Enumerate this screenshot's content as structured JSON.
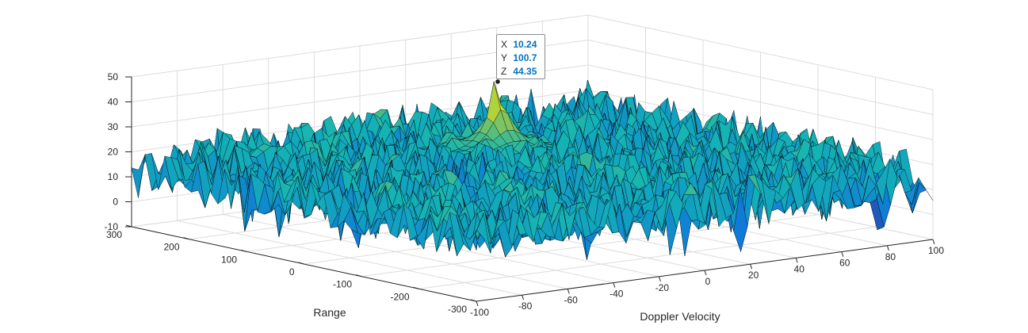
{
  "chart_data": {
    "type": "surface",
    "xlabel": "Doppler Velocity",
    "ylabel": "Range",
    "zlabel": "",
    "title": "",
    "xlim": [
      -100,
      100
    ],
    "ylim": [
      -300,
      300
    ],
    "zlim": [
      -10,
      50
    ],
    "x_ticks": [
      "-100",
      "-80",
      "-60",
      "-40",
      "-20",
      "0",
      "20",
      "40",
      "60",
      "80",
      "100"
    ],
    "y_ticks": [
      "-300",
      "-200",
      "-100",
      "0",
      "100",
      "200",
      "300"
    ],
    "z_ticks": [
      "-10",
      "0",
      "10",
      "20",
      "30",
      "40",
      "50"
    ],
    "grid": true,
    "colormap": "parula",
    "noise_floor_z": [
      5,
      25
    ],
    "peak": {
      "x": 10.24,
      "y": 100.7,
      "z": 44.35
    },
    "datatip": {
      "x_label": "X",
      "x_value": "10.24",
      "y_label": "Y",
      "y_value": "100.7",
      "z_label": "Z",
      "z_value": "44.35",
      "value_color": "#0072bd"
    },
    "colors": {
      "grid": "#dcdcdc",
      "axis": "#262626",
      "edge": "#000000"
    }
  }
}
